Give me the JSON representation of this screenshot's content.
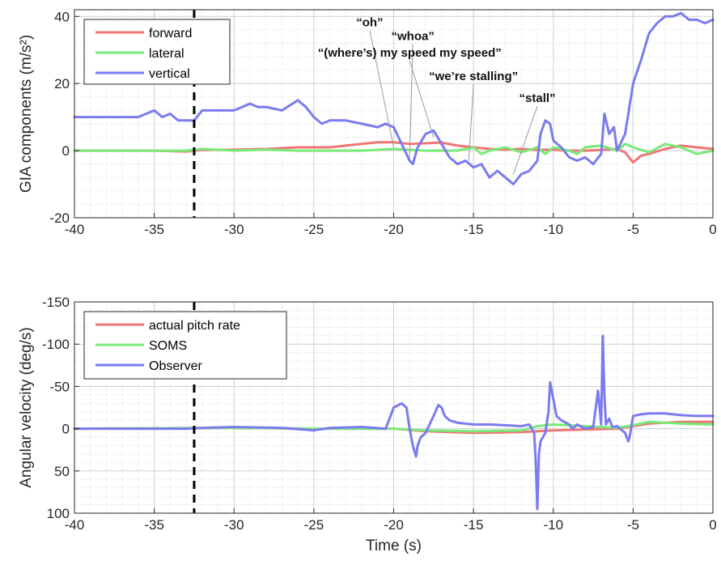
{
  "chart_data": [
    {
      "type": "line",
      "ylabel": "GIA components (m/s²)",
      "xlabel": "",
      "xlim": [
        -40,
        0
      ],
      "ylim": [
        -20,
        42
      ],
      "y_reversed": false,
      "x_ticks": [
        "-40",
        "-35",
        "-30",
        "-25",
        "-20",
        "-15",
        "-10",
        "-5",
        "0"
      ],
      "y_ticks": [
        {
          "v": 40,
          "label": "40"
        },
        {
          "v": 20,
          "label": "20"
        },
        {
          "v": 0,
          "label": "0"
        },
        {
          "v": -20,
          "label": "-20"
        }
      ],
      "grid": "major+minor",
      "legend_position": "top-left",
      "vline_x": -32.5,
      "series": [
        {
          "name": "forward",
          "color": "#f07575",
          "x": [
            -40,
            -35,
            -33,
            -32,
            -30,
            -28,
            -26,
            -24,
            -22,
            -21,
            -20,
            -19,
            -18,
            -17,
            -16,
            -15,
            -14,
            -13,
            -12,
            -11,
            -10,
            -9,
            -8,
            -7,
            -6,
            -5.5,
            -5,
            -4.5,
            -4,
            -3,
            -2,
            -1,
            0
          ],
          "y": [
            0,
            0,
            -0.3,
            0.2,
            0.3,
            0.5,
            1,
            1,
            2,
            2.5,
            2.5,
            2,
            2.2,
            2.4,
            1.5,
            1,
            0.5,
            0.3,
            0.5,
            0.2,
            0.3,
            0,
            0,
            0.2,
            0.5,
            -0.5,
            -3.5,
            -1.5,
            -1,
            0.5,
            1.5,
            1,
            0.5
          ]
        },
        {
          "name": "lateral",
          "color": "#78ea78",
          "x": [
            -40,
            -35,
            -33,
            -32,
            -30,
            -28,
            -26,
            -24,
            -22,
            -20,
            -18,
            -16,
            -15,
            -14.5,
            -14,
            -13,
            -12,
            -11,
            -10.5,
            -10,
            -9,
            -8.5,
            -8,
            -7,
            -6,
            -5.5,
            -5,
            -4,
            -3,
            -2,
            -1,
            0
          ],
          "y": [
            0,
            0,
            0,
            0.5,
            0,
            0.3,
            0,
            0,
            0,
            0.5,
            0,
            0,
            1,
            -1,
            0,
            1,
            -0.5,
            1,
            -1,
            1,
            0,
            -1,
            1,
            1.5,
            0,
            2,
            1,
            -0.5,
            2,
            1,
            -1,
            0
          ]
        },
        {
          "name": "vertical",
          "color": "#7b7bf0",
          "x": [
            -40,
            -38,
            -36,
            -35,
            -34.5,
            -34,
            -33.5,
            -33,
            -32.5,
            -32,
            -31,
            -30,
            -29,
            -28.5,
            -28,
            -27,
            -26,
            -25.5,
            -25,
            -24.5,
            -24,
            -23,
            -22,
            -21,
            -20.5,
            -20,
            -19.5,
            -19,
            -18.8,
            -18.5,
            -18,
            -17.5,
            -17,
            -16.5,
            -16,
            -15.5,
            -15,
            -14.5,
            -14,
            -13.5,
            -13,
            -12.5,
            -12,
            -11.5,
            -11,
            -10.8,
            -10.5,
            -10.2,
            -10,
            -9.5,
            -9,
            -8.5,
            -8,
            -7.5,
            -7,
            -6.8,
            -6.5,
            -6.2,
            -6,
            -5.8,
            -5.5,
            -5,
            -4.5,
            -4,
            -3.5,
            -3,
            -2.5,
            -2,
            -1.5,
            -1,
            -0.5,
            0
          ],
          "y": [
            10,
            10,
            10,
            12,
            10,
            11,
            9,
            9,
            9,
            12,
            12,
            12,
            14,
            13,
            13,
            12,
            15,
            13,
            10,
            8,
            9,
            9,
            8,
            7,
            8,
            7,
            2,
            -3,
            -4,
            1,
            5,
            6,
            2,
            -2,
            -4,
            -3,
            -5,
            -4,
            -8,
            -6,
            -8,
            -10,
            -7,
            -6,
            -3,
            5,
            9,
            8,
            3,
            1,
            -2,
            -3,
            -2,
            -4,
            -1,
            11,
            5,
            7,
            0,
            2,
            5,
            20,
            27,
            35,
            38,
            40,
            40,
            41,
            39,
            39,
            38,
            39
          ]
        }
      ],
      "annotations": [
        {
          "text": "“oh”",
          "x": -21.5,
          "y": 37,
          "tx": -20,
          "ty": 1
        },
        {
          "text": "“whoa”",
          "x": -18.8,
          "y": 33,
          "tx": -19,
          "ty": -2
        },
        {
          "text": "“(where’s) my speed my speed”",
          "x": -19,
          "y": 28,
          "tx": -17.5,
          "ty": 4
        },
        {
          "text": "“we’re stalling”",
          "x": -15,
          "y": 21,
          "tx": -15.3,
          "ty": -3
        },
        {
          "text": "“stall”",
          "x": -11,
          "y": 14.5,
          "tx": -12.5,
          "ty": -7
        }
      ]
    },
    {
      "type": "line",
      "ylabel": "Angular velocity (deg/s)",
      "xlabel": "Time (s)",
      "xlim": [
        -40,
        0
      ],
      "ylim": [
        -150,
        100
      ],
      "y_reversed": true,
      "x_ticks": [
        "-40",
        "-35",
        "-30",
        "-25",
        "-20",
        "-15",
        "-10",
        "-5",
        "0"
      ],
      "y_ticks": [
        {
          "v": -150,
          "label": "-150"
        },
        {
          "v": -100,
          "label": "-100"
        },
        {
          "v": -50,
          "label": "-50"
        },
        {
          "v": 0,
          "label": "0"
        },
        {
          "v": 50,
          "label": "50"
        },
        {
          "v": 100,
          "label": "100"
        }
      ],
      "grid": "major+minor",
      "legend_position": "top-left",
      "vline_x": -32.5,
      "series": [
        {
          "name": "actual pitch rate",
          "color": "#f07575",
          "x": [
            -40,
            -30,
            -25,
            -20,
            -18,
            -15,
            -12,
            -10,
            -8,
            -6,
            -5,
            -4,
            -2,
            0
          ],
          "y": [
            0,
            -1,
            0,
            0,
            3,
            5,
            4,
            2,
            1,
            0,
            -3,
            -6,
            -8,
            -8
          ]
        },
        {
          "name": "SOMS",
          "color": "#78ea78",
          "x": [
            -40,
            -30,
            -25,
            -20,
            -18,
            -15,
            -12,
            -11,
            -10,
            -8,
            -6,
            -5,
            -4,
            -2,
            0
          ],
          "y": [
            0,
            -1,
            0,
            0,
            2,
            3,
            2,
            -3,
            -5,
            -3,
            -1,
            -4,
            -8,
            -6,
            -5
          ]
        },
        {
          "name": "Observer",
          "color": "#7b7bf0",
          "x": [
            -40,
            -33,
            -32,
            -30,
            -27,
            -25,
            -24,
            -22,
            -20.5,
            -20,
            -19.5,
            -19.2,
            -19,
            -18.8,
            -18.6,
            -18.5,
            -18.3,
            -18,
            -17.5,
            -17.2,
            -17,
            -16.8,
            -16.5,
            -16,
            -15,
            -14,
            -13,
            -12,
            -11.5,
            -11.2,
            -11.1,
            -11,
            -10.9,
            -10.8,
            -10.5,
            -10.3,
            -10.2,
            -10,
            -9.8,
            -9.5,
            -9,
            -8.8,
            -8.5,
            -8,
            -7.5,
            -7.2,
            -7,
            -6.9,
            -6.8,
            -6.7,
            -6.5,
            -6.3,
            -6,
            -5.5,
            -5.3,
            -5.2,
            -5,
            -4.5,
            -4,
            -3,
            -2,
            -1,
            0
          ],
          "y": [
            0,
            0,
            -1,
            -2,
            -1,
            2,
            -1,
            -2,
            0,
            -25,
            -30,
            -25,
            0,
            20,
            33,
            20,
            10,
            5,
            -15,
            -28,
            -25,
            -15,
            -10,
            -7,
            -5,
            -5,
            -4,
            -3,
            -5,
            5,
            40,
            95,
            30,
            15,
            5,
            -20,
            -55,
            -35,
            -15,
            -10,
            -5,
            0,
            -5,
            0,
            -2,
            -45,
            -5,
            -110,
            -40,
            -5,
            -12,
            -2,
            -3,
            5,
            15,
            8,
            -15,
            -17,
            -18,
            -18,
            -16,
            -15,
            -15
          ]
        }
      ]
    }
  ]
}
